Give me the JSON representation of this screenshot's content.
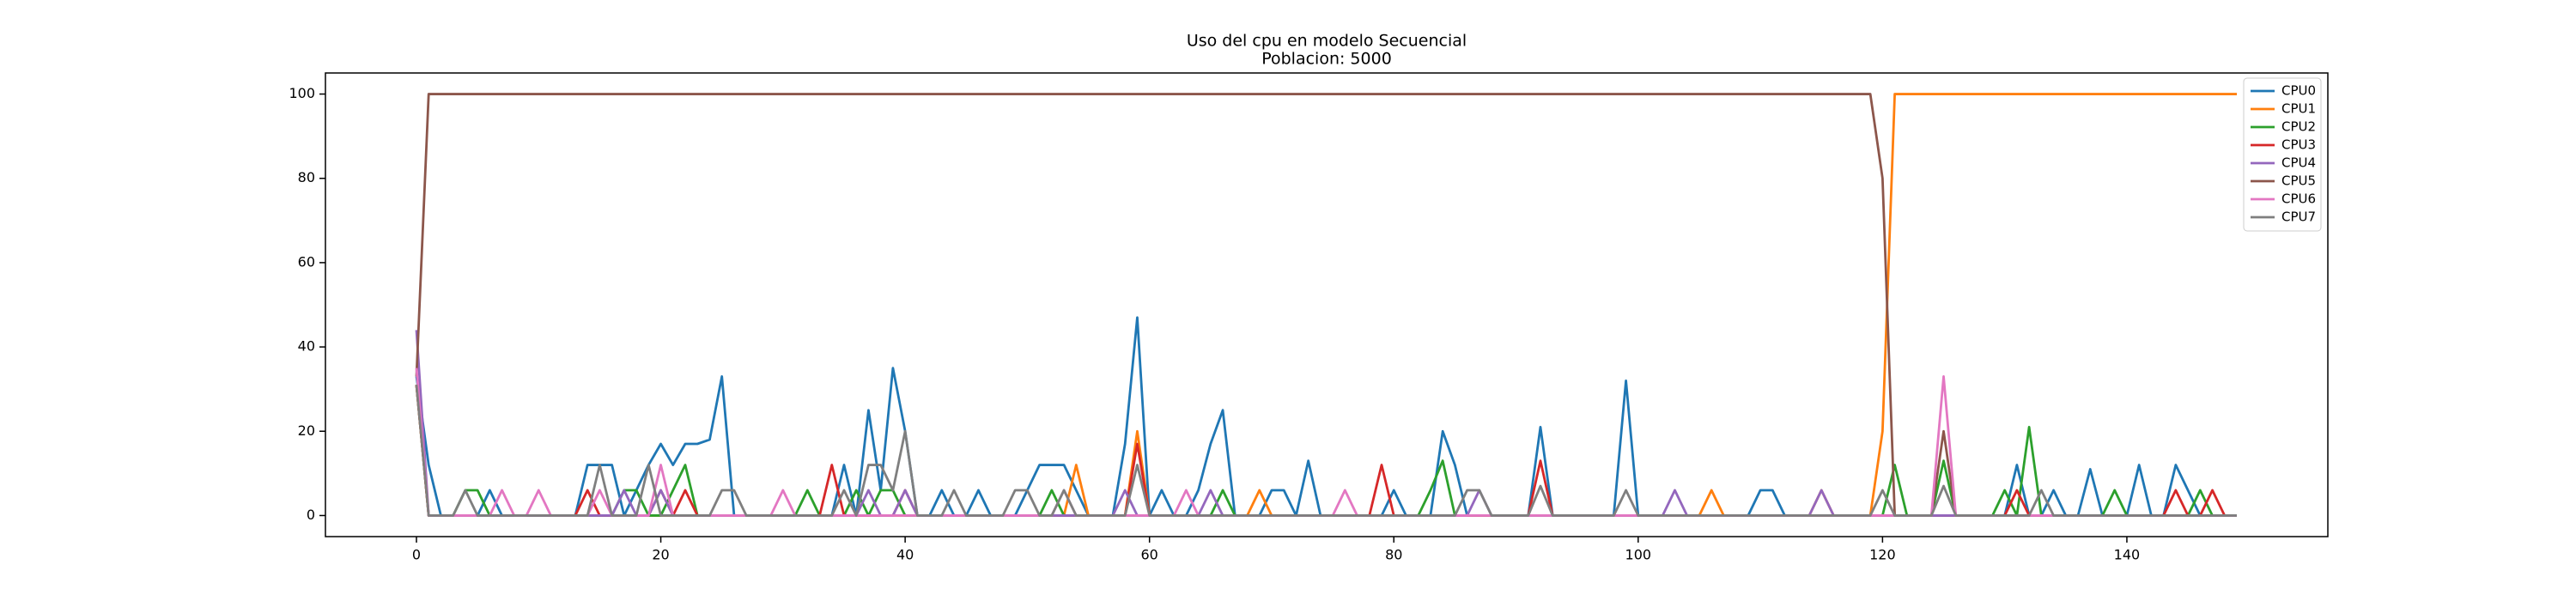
{
  "chart_data": {
    "type": "line",
    "title": "Uso del cpu en modelo Secuencial",
    "subtitle": "Poblacion: 5000",
    "legend": "upper right",
    "grid": false,
    "xlim": [
      -7.45,
      156.45
    ],
    "ylim": [
      -5,
      105
    ],
    "xticks": [
      0,
      20,
      40,
      60,
      80,
      100,
      120,
      140
    ],
    "yticks": [
      0,
      20,
      40,
      60,
      80,
      100
    ],
    "x": [
      0,
      1,
      2,
      3,
      4,
      5,
      6,
      7,
      8,
      9,
      10,
      11,
      12,
      13,
      14,
      15,
      16,
      17,
      18,
      19,
      20,
      21,
      22,
      23,
      24,
      25,
      26,
      27,
      28,
      29,
      30,
      31,
      32,
      33,
      34,
      35,
      36,
      37,
      38,
      39,
      40,
      41,
      42,
      43,
      44,
      45,
      46,
      47,
      48,
      49,
      50,
      51,
      52,
      53,
      54,
      55,
      56,
      57,
      58,
      59,
      60,
      61,
      62,
      63,
      64,
      65,
      66,
      67,
      68,
      69,
      70,
      71,
      72,
      73,
      74,
      75,
      76,
      77,
      78,
      79,
      80,
      81,
      82,
      83,
      84,
      85,
      86,
      87,
      88,
      89,
      90,
      91,
      92,
      93,
      94,
      95,
      96,
      97,
      98,
      99,
      100,
      101,
      102,
      103,
      104,
      105,
      106,
      107,
      108,
      109,
      110,
      111,
      112,
      113,
      114,
      115,
      116,
      117,
      118,
      119,
      120,
      121,
      122,
      123,
      124,
      125,
      126,
      127,
      128,
      129,
      130,
      131,
      132,
      133,
      134,
      135,
      136,
      137,
      138,
      139,
      140,
      141,
      142,
      143,
      144,
      145,
      146,
      147,
      148,
      149
    ],
    "series": [
      {
        "name": "CPU0",
        "color": "#1f77b4",
        "values": [
          33,
          12,
          0,
          0,
          0,
          0,
          6,
          0,
          0,
          0,
          0,
          0,
          0,
          0,
          12,
          12,
          12,
          0,
          6,
          12,
          17,
          12,
          17,
          17,
          18,
          33,
          0,
          0,
          0,
          0,
          0,
          0,
          0,
          0,
          0,
          12,
          0,
          25,
          6,
          35,
          20,
          0,
          0,
          6,
          0,
          0,
          6,
          0,
          0,
          0,
          6,
          12,
          12,
          12,
          6,
          0,
          0,
          0,
          17,
          47,
          0,
          6,
          0,
          0,
          6,
          17,
          25,
          0,
          0,
          0,
          6,
          6,
          0,
          13,
          0,
          0,
          0,
          0,
          0,
          0,
          6,
          0,
          0,
          0,
          20,
          12,
          0,
          0,
          0,
          0,
          0,
          0,
          21,
          0,
          0,
          0,
          0,
          0,
          0,
          32,
          0,
          0,
          0,
          0,
          0,
          0,
          0,
          0,
          0,
          0,
          6,
          6,
          0,
          0,
          0,
          0,
          0,
          0,
          0,
          0,
          0,
          0,
          0,
          0,
          0,
          0,
          0,
          0,
          0,
          0,
          0,
          12,
          0,
          0,
          6,
          0,
          0,
          11,
          0,
          0,
          0,
          12,
          0,
          0,
          12,
          6,
          0,
          0,
          0,
          0
        ]
      },
      {
        "name": "CPU1",
        "color": "#ff7f0e",
        "values": [
          31,
          0,
          0,
          0,
          0,
          0,
          0,
          0,
          0,
          0,
          0,
          0,
          0,
          0,
          0,
          0,
          0,
          0,
          0,
          0,
          0,
          0,
          0,
          0,
          0,
          0,
          0,
          0,
          0,
          0,
          0,
          0,
          0,
          0,
          0,
          0,
          0,
          0,
          0,
          0,
          0,
          0,
          0,
          0,
          0,
          0,
          0,
          0,
          0,
          0,
          0,
          0,
          0,
          0,
          12,
          0,
          0,
          0,
          0,
          20,
          0,
          0,
          0,
          0,
          0,
          0,
          0,
          0,
          0,
          6,
          0,
          0,
          0,
          0,
          0,
          0,
          0,
          0,
          0,
          0,
          0,
          0,
          0,
          0,
          0,
          0,
          0,
          0,
          0,
          0,
          0,
          0,
          0,
          0,
          0,
          0,
          0,
          0,
          0,
          0,
          0,
          0,
          0,
          0,
          0,
          0,
          6,
          0,
          0,
          0,
          0,
          0,
          0,
          0,
          0,
          6,
          0,
          0,
          0,
          0,
          20,
          100,
          100,
          100,
          100,
          100,
          100,
          100,
          100,
          100,
          100,
          100,
          100,
          100,
          100,
          100,
          100,
          100,
          100,
          100,
          100,
          100,
          100,
          100,
          100,
          100,
          100,
          100,
          100,
          100
        ]
      },
      {
        "name": "CPU2",
        "color": "#2ca02c",
        "values": [
          31,
          0,
          0,
          0,
          6,
          6,
          0,
          0,
          0,
          0,
          0,
          0,
          0,
          0,
          0,
          0,
          0,
          6,
          6,
          0,
          0,
          6,
          12,
          0,
          0,
          0,
          0,
          0,
          0,
          0,
          0,
          0,
          6,
          0,
          0,
          0,
          6,
          0,
          6,
          6,
          0,
          0,
          0,
          0,
          0,
          0,
          0,
          0,
          0,
          0,
          0,
          0,
          6,
          0,
          0,
          0,
          0,
          0,
          0,
          0,
          0,
          0,
          0,
          0,
          0,
          0,
          6,
          0,
          0,
          0,
          0,
          0,
          0,
          0,
          0,
          0,
          0,
          0,
          0,
          0,
          0,
          0,
          0,
          6,
          13,
          0,
          0,
          0,
          0,
          0,
          0,
          0,
          0,
          0,
          0,
          0,
          0,
          0,
          0,
          0,
          0,
          0,
          0,
          0,
          0,
          0,
          0,
          0,
          0,
          0,
          0,
          0,
          0,
          0,
          0,
          0,
          0,
          0,
          0,
          0,
          0,
          12,
          0,
          0,
          0,
          13,
          0,
          0,
          0,
          0,
          6,
          0,
          21,
          0,
          0,
          0,
          0,
          0,
          0,
          6,
          0,
          0,
          0,
          0,
          0,
          0,
          6,
          0,
          0,
          0
        ]
      },
      {
        "name": "CPU3",
        "color": "#d62728",
        "values": [
          31,
          0,
          0,
          0,
          0,
          0,
          0,
          0,
          0,
          0,
          0,
          0,
          0,
          0,
          6,
          0,
          0,
          0,
          0,
          0,
          6,
          0,
          6,
          0,
          0,
          0,
          0,
          0,
          0,
          0,
          0,
          0,
          0,
          0,
          12,
          0,
          0,
          0,
          0,
          0,
          6,
          0,
          0,
          0,
          0,
          0,
          0,
          0,
          0,
          0,
          0,
          0,
          0,
          0,
          0,
          0,
          0,
          0,
          0,
          17,
          0,
          0,
          0,
          0,
          0,
          0,
          0,
          0,
          0,
          0,
          0,
          0,
          0,
          0,
          0,
          0,
          0,
          0,
          0,
          12,
          0,
          0,
          0,
          0,
          0,
          0,
          0,
          0,
          0,
          0,
          0,
          0,
          13,
          0,
          0,
          0,
          0,
          0,
          0,
          0,
          0,
          0,
          0,
          0,
          0,
          0,
          0,
          0,
          0,
          0,
          0,
          0,
          0,
          0,
          0,
          0,
          0,
          0,
          0,
          0,
          0,
          0,
          0,
          0,
          0,
          0,
          0,
          0,
          0,
          0,
          0,
          6,
          0,
          0,
          0,
          0,
          0,
          0,
          0,
          0,
          0,
          0,
          0,
          0,
          6,
          0,
          0,
          6,
          0,
          0
        ]
      },
      {
        "name": "CPU4",
        "color": "#9467bd",
        "values": [
          44,
          0,
          0,
          0,
          0,
          0,
          0,
          0,
          0,
          0,
          0,
          0,
          0,
          0,
          0,
          0,
          0,
          6,
          0,
          0,
          6,
          0,
          0,
          0,
          0,
          0,
          0,
          0,
          0,
          0,
          0,
          0,
          0,
          0,
          0,
          0,
          0,
          6,
          0,
          0,
          6,
          0,
          0,
          0,
          0,
          0,
          0,
          0,
          0,
          0,
          0,
          0,
          0,
          0,
          0,
          0,
          0,
          0,
          6,
          0,
          0,
          0,
          0,
          0,
          0,
          6,
          0,
          0,
          0,
          0,
          0,
          0,
          0,
          0,
          0,
          0,
          0,
          0,
          0,
          0,
          0,
          0,
          0,
          0,
          0,
          0,
          0,
          6,
          0,
          0,
          0,
          0,
          0,
          0,
          0,
          0,
          0,
          0,
          0,
          0,
          0,
          0,
          0,
          6,
          0,
          0,
          0,
          0,
          0,
          0,
          0,
          0,
          0,
          0,
          0,
          6,
          0,
          0,
          0,
          0,
          0,
          0,
          0,
          0,
          0,
          0,
          0,
          0,
          0,
          0,
          0,
          0,
          0,
          0,
          0,
          0,
          0,
          0,
          0,
          0,
          0,
          0,
          0,
          0,
          0,
          0,
          0,
          0,
          0,
          0
        ]
      },
      {
        "name": "CPU5",
        "color": "#8c564b",
        "values": [
          33,
          100,
          100,
          100,
          100,
          100,
          100,
          100,
          100,
          100,
          100,
          100,
          100,
          100,
          100,
          100,
          100,
          100,
          100,
          100,
          100,
          100,
          100,
          100,
          100,
          100,
          100,
          100,
          100,
          100,
          100,
          100,
          100,
          100,
          100,
          100,
          100,
          100,
          100,
          100,
          100,
          100,
          100,
          100,
          100,
          100,
          100,
          100,
          100,
          100,
          100,
          100,
          100,
          100,
          100,
          100,
          100,
          100,
          100,
          100,
          100,
          100,
          100,
          100,
          100,
          100,
          100,
          100,
          100,
          100,
          100,
          100,
          100,
          100,
          100,
          100,
          100,
          100,
          100,
          100,
          100,
          100,
          100,
          100,
          100,
          100,
          100,
          100,
          100,
          100,
          100,
          100,
          100,
          100,
          100,
          100,
          100,
          100,
          100,
          100,
          100,
          100,
          100,
          100,
          100,
          100,
          100,
          100,
          100,
          100,
          100,
          100,
          100,
          100,
          100,
          100,
          100,
          100,
          100,
          100,
          80,
          0,
          0,
          0,
          0,
          20,
          0,
          0,
          0,
          0,
          0,
          0,
          0,
          0,
          0,
          0,
          0,
          0,
          0,
          0,
          0,
          0,
          0,
          0,
          0,
          0,
          0,
          0,
          0,
          0
        ]
      },
      {
        "name": "CPU6",
        "color": "#e377c2",
        "values": [
          35,
          0,
          0,
          0,
          0,
          0,
          0,
          6,
          0,
          0,
          6,
          0,
          0,
          0,
          0,
          6,
          0,
          0,
          0,
          0,
          12,
          0,
          0,
          0,
          0,
          0,
          0,
          0,
          0,
          0,
          6,
          0,
          0,
          0,
          0,
          0,
          0,
          0,
          0,
          0,
          0,
          0,
          0,
          0,
          0,
          0,
          0,
          0,
          0,
          0,
          0,
          0,
          0,
          6,
          0,
          0,
          0,
          0,
          0,
          0,
          0,
          0,
          0,
          6,
          0,
          0,
          0,
          0,
          0,
          0,
          0,
          0,
          0,
          0,
          0,
          0,
          6,
          0,
          0,
          0,
          0,
          0,
          0,
          0,
          0,
          0,
          0,
          0,
          0,
          0,
          0,
          0,
          0,
          0,
          0,
          0,
          0,
          0,
          0,
          0,
          0,
          0,
          0,
          0,
          0,
          0,
          0,
          0,
          0,
          0,
          0,
          0,
          0,
          0,
          0,
          0,
          0,
          0,
          0,
          0,
          0,
          0,
          0,
          0,
          0,
          33,
          0,
          0,
          0,
          0,
          0,
          0,
          0,
          0,
          0,
          0,
          0,
          0,
          0,
          0,
          0,
          0,
          0,
          0,
          0,
          0,
          0,
          0,
          0,
          0
        ]
      },
      {
        "name": "CPU7",
        "color": "#7f7f7f",
        "values": [
          31,
          0,
          0,
          0,
          6,
          0,
          0,
          0,
          0,
          0,
          0,
          0,
          0,
          0,
          0,
          12,
          0,
          0,
          0,
          12,
          0,
          0,
          0,
          0,
          0,
          6,
          6,
          0,
          0,
          0,
          0,
          0,
          0,
          0,
          0,
          6,
          0,
          12,
          12,
          6,
          20,
          0,
          0,
          0,
          6,
          0,
          0,
          0,
          0,
          6,
          6,
          0,
          0,
          6,
          0,
          0,
          0,
          0,
          0,
          12,
          0,
          0,
          0,
          0,
          0,
          0,
          0,
          0,
          0,
          0,
          0,
          0,
          0,
          0,
          0,
          0,
          0,
          0,
          0,
          0,
          0,
          0,
          0,
          0,
          0,
          0,
          6,
          6,
          0,
          0,
          0,
          0,
          7,
          0,
          0,
          0,
          0,
          0,
          0,
          6,
          0,
          0,
          0,
          0,
          0,
          0,
          0,
          0,
          0,
          0,
          0,
          0,
          0,
          0,
          0,
          0,
          0,
          0,
          0,
          0,
          6,
          0,
          0,
          0,
          0,
          7,
          0,
          0,
          0,
          0,
          0,
          0,
          0,
          6,
          0,
          0,
          0,
          0,
          0,
          0,
          0,
          0,
          0,
          0,
          0,
          0,
          0,
          0,
          0,
          0
        ]
      }
    ]
  }
}
